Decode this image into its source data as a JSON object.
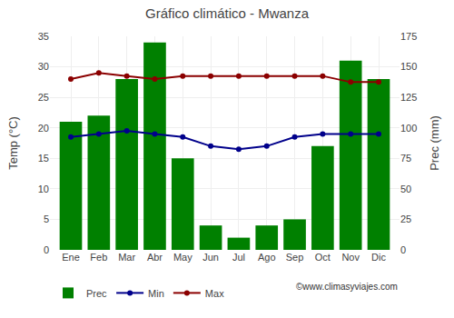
{
  "chart_data": {
    "type": "bar_line",
    "title": "Gráfico climático - Mwanza",
    "categories": [
      "Ene",
      "Feb",
      "Mar",
      "Abr",
      "May",
      "Jun",
      "Jul",
      "Ago",
      "Sep",
      "Oct",
      "Nov",
      "Dic"
    ],
    "series": [
      {
        "name": "Prec",
        "type": "bar",
        "color": "#008000",
        "axis": "y2",
        "values": [
          105,
          110,
          140,
          170,
          75,
          20,
          10,
          20,
          25,
          85,
          155,
          140
        ]
      },
      {
        "name": "Min",
        "type": "line",
        "color": "#00008B",
        "marker": "circle",
        "values": [
          18.5,
          19.0,
          19.5,
          19.0,
          18.5,
          17.0,
          16.5,
          17.0,
          18.5,
          19.0,
          19.0,
          19.0
        ]
      },
      {
        "name": "Max",
        "type": "line",
        "color": "#8B0000",
        "marker": "circle",
        "values": [
          28.0,
          29.0,
          28.5,
          28.0,
          28.5,
          28.5,
          28.5,
          28.5,
          28.5,
          28.5,
          27.5,
          27.5
        ]
      }
    ],
    "ylabel": "Temp (°C)",
    "y2label": "Prec (mm)",
    "ylim": [
      0,
      35
    ],
    "yticks": [
      0,
      5,
      10,
      15,
      20,
      25,
      30,
      35
    ],
    "y2lim": [
      0,
      175
    ],
    "y2ticks": [
      0,
      25,
      50,
      75,
      100,
      125,
      150,
      175
    ],
    "grid": true,
    "legend": "bottom",
    "annotations": [
      "©www.climasyviajes.com"
    ]
  }
}
